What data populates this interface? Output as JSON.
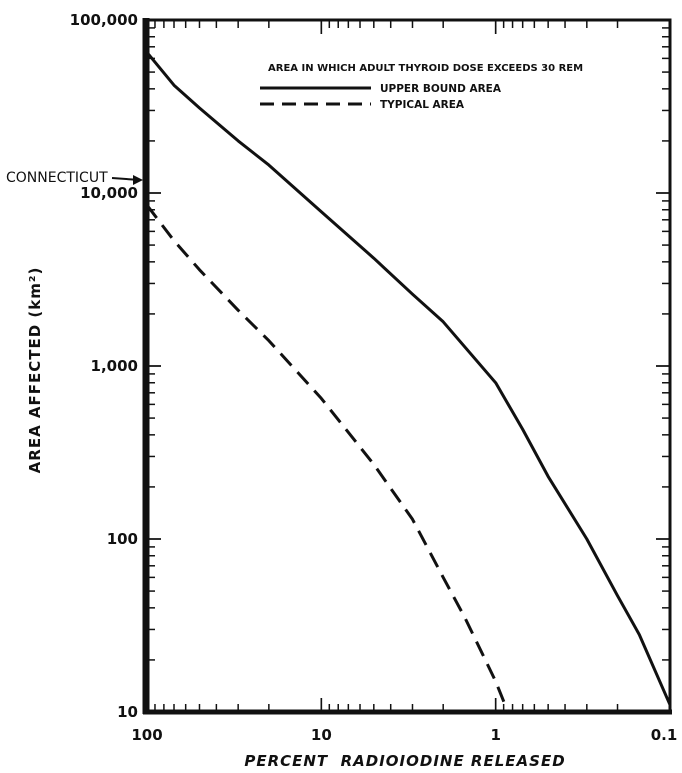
{
  "chart_data": {
    "type": "line",
    "title": "",
    "xlabel": "PERCENT  RADIOIODINE RELEASED",
    "ylabel": "AREA AFFECTED (km²)",
    "x_scale": "log",
    "y_scale": "log",
    "x_reversed": true,
    "xlim": [
      100,
      0.1
    ],
    "ylim": [
      10,
      100000
    ],
    "x_ticks": [
      100,
      10,
      1,
      0.1
    ],
    "x_tick_labels": [
      "100",
      "10",
      "1",
      "0.1"
    ],
    "y_ticks": [
      10,
      100,
      1000,
      10000,
      100000
    ],
    "y_tick_labels": [
      "10",
      "100",
      "1,000",
      "10,000",
      "100,000"
    ],
    "legend": {
      "title": "AREA IN WHICH ADULT THYROID DOSE EXCEEDS 30 REM",
      "position": "top-right"
    },
    "series": [
      {
        "name": "UPPER BOUND AREA",
        "style": "solid",
        "x": [
          100,
          70,
          50,
          30,
          20,
          10,
          5,
          3,
          2,
          1,
          0.7,
          0.5,
          0.3,
          0.2,
          0.15,
          0.1
        ],
        "y": [
          65000,
          42000,
          31000,
          20000,
          14500,
          7800,
          4200,
          2600,
          1800,
          800,
          430,
          230,
          100,
          47,
          28,
          11
        ]
      },
      {
        "name": "TYPICAL AREA",
        "style": "dashed",
        "x": [
          100,
          70,
          50,
          30,
          20,
          10,
          5,
          3,
          2,
          1.5,
          1.2,
          1.0,
          0.85
        ],
        "y": [
          8500,
          5300,
          3600,
          2100,
          1400,
          650,
          270,
          130,
          60,
          35,
          22,
          15,
          10
        ]
      }
    ],
    "annotations": [
      {
        "text": "CONNECTICUT",
        "y": 12000
      }
    ]
  }
}
